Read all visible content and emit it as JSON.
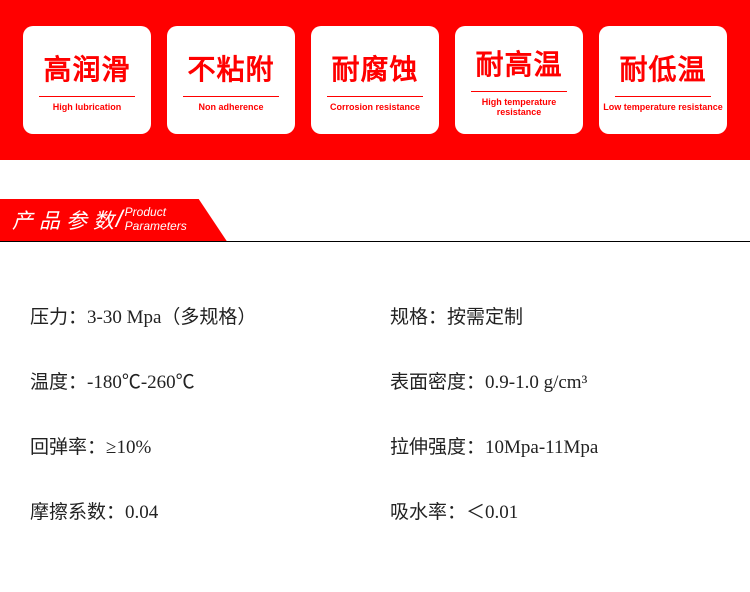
{
  "colors": {
    "brand_red": "#ff0000",
    "white": "#ffffff",
    "text": "#222222",
    "divider": "#000000"
  },
  "features": [
    {
      "cn": "高润滑",
      "en": "High lubrication"
    },
    {
      "cn": "不粘附",
      "en": "Non adherence"
    },
    {
      "cn": "耐腐蚀",
      "en": "Corrosion resistance"
    },
    {
      "cn": "耐高温",
      "en": "High temperature resistance"
    },
    {
      "cn": "耐低温",
      "en": "Low temperature resistance"
    }
  ],
  "section_header": {
    "cn": "产品参数",
    "en_line1": "Product",
    "en_line2": "Parameters"
  },
  "parameters": {
    "left": [
      {
        "label": "压力：",
        "value": "3-30 Mpa（多规格）"
      },
      {
        "label": "温度：",
        "value": "-180℃-260℃"
      },
      {
        "label": "回弹率：",
        "value": "≥10%"
      },
      {
        "label": "摩擦系数：",
        "value": "0.04"
      }
    ],
    "right": [
      {
        "label": "规格：",
        "value": "按需定制"
      },
      {
        "label": "表面密度：",
        "value": "0.9-1.0 g/cm³"
      },
      {
        "label": "拉伸强度：",
        "value": "10Mpa-11Mpa"
      },
      {
        "label": "吸水率：",
        "value": "＜0.01"
      }
    ]
  }
}
